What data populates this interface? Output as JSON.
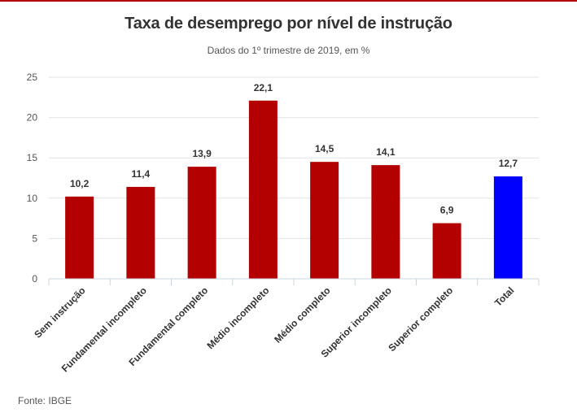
{
  "chart_data": {
    "type": "bar",
    "title": "Taxa de desemprego por nível de instrução",
    "subtitle": "Dados do 1º trimestre de 2019, em %",
    "categories": [
      "Sem instrução",
      "Fundamental incompleto",
      "Fundamental completo",
      "Médio incompleto",
      "Médio completo",
      "Superior incompleto",
      "Superior completo",
      "Total"
    ],
    "values": [
      10.2,
      11.4,
      13.9,
      22.1,
      14.5,
      14.1,
      6.9,
      12.7
    ],
    "value_labels": [
      "10,2",
      "11,4",
      "13,9",
      "22,1",
      "14,5",
      "14,1",
      "6,9",
      "12,7"
    ],
    "bar_colors": [
      "#b30000",
      "#b30000",
      "#b30000",
      "#b30000",
      "#b30000",
      "#b30000",
      "#b30000",
      "#0000ff"
    ],
    "ylim": [
      0,
      25
    ],
    "yticks": [
      0,
      5,
      10,
      15,
      20,
      25
    ],
    "xlabel": "",
    "ylabel": "",
    "grid": true,
    "legend": "none"
  },
  "source": "Fonte: IBGE"
}
